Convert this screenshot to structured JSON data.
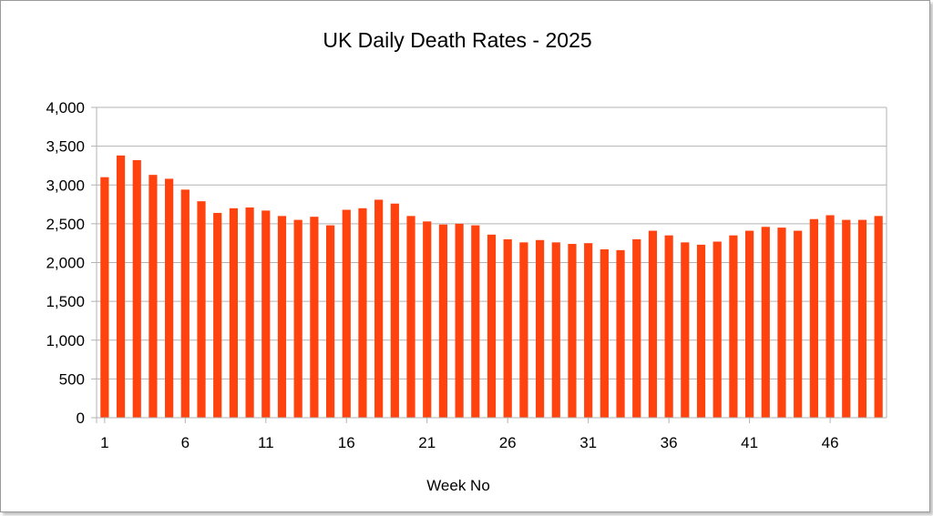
{
  "chart_data": {
    "type": "bar",
    "title": "UK Daily Death Rates - 2025",
    "xlabel": "Week No",
    "ylabel": "",
    "x": [
      1,
      2,
      3,
      4,
      5,
      6,
      7,
      8,
      9,
      10,
      11,
      12,
      13,
      14,
      15,
      16,
      17,
      18,
      19,
      20,
      21,
      22,
      23,
      24,
      25,
      26,
      27,
      28,
      29,
      30,
      31,
      32,
      33,
      34,
      35,
      36,
      37,
      38,
      39,
      40,
      41,
      42,
      43,
      44,
      45,
      46,
      47,
      48,
      49
    ],
    "values": [
      3100,
      3380,
      3320,
      3130,
      3080,
      2940,
      2790,
      2640,
      2700,
      2710,
      2670,
      2600,
      2550,
      2590,
      2480,
      2680,
      2700,
      2810,
      2760,
      2600,
      2530,
      2490,
      2500,
      2480,
      2360,
      2300,
      2260,
      2290,
      2260,
      2240,
      2250,
      2170,
      2160,
      2300,
      2410,
      2350,
      2260,
      2230,
      2270,
      2350,
      2410,
      2460,
      2450,
      2410,
      2560,
      2610,
      2550,
      2550,
      2600
    ],
    "x_tick_labels": [
      "1",
      "6",
      "11",
      "16",
      "21",
      "26",
      "31",
      "36",
      "41",
      "46"
    ],
    "y_tick_labels": [
      "0",
      "500",
      "1,000",
      "1,500",
      "2,000",
      "2,500",
      "3,000",
      "3,500",
      "4,000"
    ],
    "ylim": [
      0,
      4000
    ],
    "y_step": 500,
    "grid": true,
    "legend": "none",
    "colors": {
      "bar": "#ff420e",
      "grid": "#b3b3b3",
      "axis": "#b3b3b3"
    }
  }
}
